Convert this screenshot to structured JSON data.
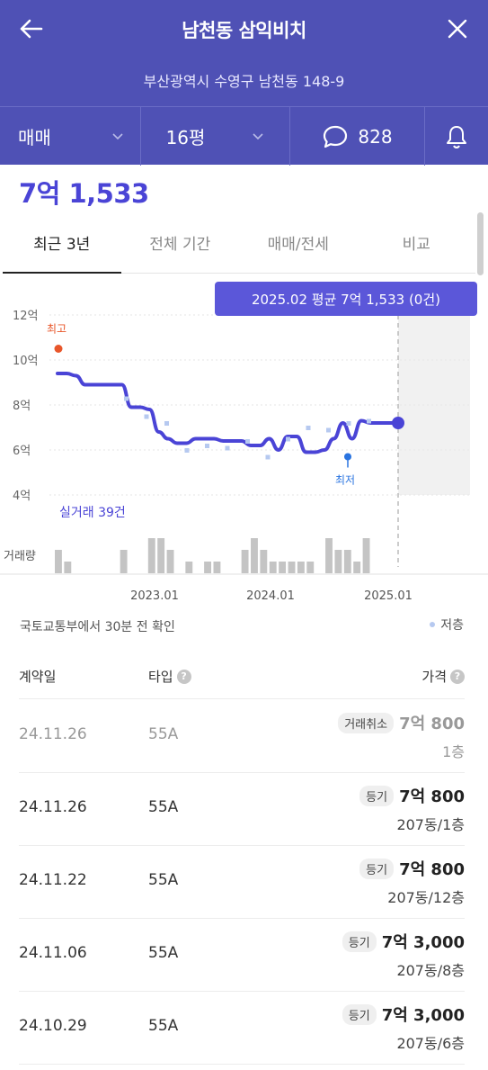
{
  "header": {
    "title": "남천동 삼익비치",
    "address": "부산광역시 수영구 남천동 148-9",
    "trade_type": "매매",
    "size": "16평",
    "comment_count": "828",
    "color": "#4f51b5"
  },
  "price": {
    "current": "7억 1,533",
    "color": "#4a44d6"
  },
  "tabs": [
    "최근 3년",
    "전체 기간",
    "매매/전세",
    "비교"
  ],
  "tooltip": "2025.02 평균 7억 1,533 (0건)",
  "chart_data": {
    "type": "line",
    "y_ticks": [
      "12억",
      "10억",
      "8억",
      "6억",
      "4억"
    ],
    "ylim": [
      4,
      12
    ],
    "x_ticks": [
      "2023.01",
      "2024.01",
      "2025.01"
    ],
    "max_label": "최고",
    "min_label": "최저",
    "max_value": 10.5,
    "min_value": 5.7,
    "trade_count_label": "실거래 39건",
    "volume_label": "거래량",
    "series": [
      {
        "values": [
          9.4,
          9.4,
          9.3,
          8.9,
          8.9,
          8.9,
          8.9,
          8.9,
          7.9,
          7.9,
          7.8,
          6.8,
          6.5,
          6.3,
          6.3,
          6.5,
          6.5,
          6.5,
          6.4,
          6.4,
          6.4,
          6.2,
          6.2,
          6.5,
          6.0,
          6.6,
          6.6,
          5.9,
          5.9,
          6.0,
          6.5,
          7.2,
          6.5,
          7.3,
          7.2,
          7.2,
          7.2,
          7.2
        ]
      }
    ],
    "scatter_values": [
      8.3,
      7.5,
      7.2,
      6.0,
      6.2,
      6.1,
      6.4,
      5.7,
      6.5,
      7.0,
      6.9,
      7.2,
      7.3
    ],
    "volume": [
      2,
      1,
      0,
      0,
      0,
      0,
      0,
      2,
      0,
      0,
      3,
      3,
      2,
      0,
      1,
      0,
      1,
      1,
      0,
      0,
      2,
      3,
      2,
      1,
      1,
      1,
      1,
      1,
      0,
      3,
      2,
      2,
      1,
      3
    ]
  },
  "source": "국토교통부에서 30분 전 확인",
  "legend": "저층",
  "table": {
    "headers": {
      "date": "계약일",
      "type": "타입",
      "price": "가격"
    },
    "rows": [
      {
        "date": "24.11.26",
        "type": "55A",
        "badge": "거래취소",
        "amount": "7억 800",
        "floor": "1층"
      },
      {
        "date": "24.11.26",
        "type": "55A",
        "badge": "등기",
        "amount": "7억 800",
        "floor": "207동/1층"
      },
      {
        "date": "24.11.22",
        "type": "55A",
        "badge": "등기",
        "amount": "7억 800",
        "floor": "207동/12층"
      },
      {
        "date": "24.11.06",
        "type": "55A",
        "badge": "등기",
        "amount": "7억 3,000",
        "floor": "207동/8층"
      },
      {
        "date": "24.10.29",
        "type": "55A",
        "badge": "등기",
        "amount": "7억 3,000",
        "floor": "207동/6층"
      }
    ]
  }
}
